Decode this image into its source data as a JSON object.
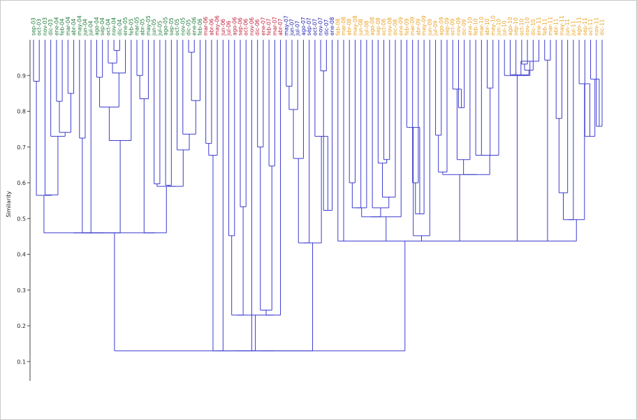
{
  "chart_data": {
    "type": "dendrogram",
    "ylabel": "Similarity",
    "ylim": [
      0.0,
      1.0
    ],
    "yticks": [
      0.1,
      0.2,
      0.3,
      0.4,
      0.5,
      0.6,
      0.7,
      0.8,
      0.9
    ],
    "group_colors": {
      "g1": "#1f7a3a",
      "g2": "#c0203a",
      "g3": "#2020b0",
      "g4": "#e8a020"
    },
    "link_color": "#3b3bd0",
    "leaves": [
      {
        "label": "sep-03",
        "group": "g1"
      },
      {
        "label": "oct-03",
        "group": "g1"
      },
      {
        "label": "nov-03",
        "group": "g1"
      },
      {
        "label": "dic-03",
        "group": "g1"
      },
      {
        "label": "ene-04",
        "group": "g1"
      },
      {
        "label": "feb-04",
        "group": "g1"
      },
      {
        "label": "mar-04",
        "group": "g1"
      },
      {
        "label": "abr-04",
        "group": "g1"
      },
      {
        "label": "may-04",
        "group": "g1"
      },
      {
        "label": "jun-04",
        "group": "g1"
      },
      {
        "label": "jul-04",
        "group": "g1"
      },
      {
        "label": "ago-04",
        "group": "g1"
      },
      {
        "label": "sep-04",
        "group": "g1"
      },
      {
        "label": "oct-04",
        "group": "g1"
      },
      {
        "label": "nov-04",
        "group": "g1"
      },
      {
        "label": "dic-04",
        "group": "g1"
      },
      {
        "label": "ene-05",
        "group": "g1"
      },
      {
        "label": "feb-05",
        "group": "g1"
      },
      {
        "label": "mar-05",
        "group": "g1"
      },
      {
        "label": "abr-05",
        "group": "g1"
      },
      {
        "label": "may-05",
        "group": "g1"
      },
      {
        "label": "jun-05",
        "group": "g1"
      },
      {
        "label": "jul-05",
        "group": "g1"
      },
      {
        "label": "ago-05",
        "group": "g1"
      },
      {
        "label": "sep-05",
        "group": "g1"
      },
      {
        "label": "oct-05",
        "group": "g1"
      },
      {
        "label": "nov-05",
        "group": "g1"
      },
      {
        "label": "dic-05",
        "group": "g1"
      },
      {
        "label": "ene-06",
        "group": "g1"
      },
      {
        "label": "feb-06",
        "group": "g1"
      },
      {
        "label": "mar-06",
        "group": "g2"
      },
      {
        "label": "abr-06",
        "group": "g2"
      },
      {
        "label": "may-06",
        "group": "g2"
      },
      {
        "label": "jun-06",
        "group": "g2"
      },
      {
        "label": "jul-06",
        "group": "g2"
      },
      {
        "label": "ago-06",
        "group": "g2"
      },
      {
        "label": "sep-06",
        "group": "g2"
      },
      {
        "label": "oct-06",
        "group": "g2"
      },
      {
        "label": "nov-06",
        "group": "g2"
      },
      {
        "label": "dic-06",
        "group": "g2"
      },
      {
        "label": "ene-07",
        "group": "g2"
      },
      {
        "label": "feb-07",
        "group": "g2"
      },
      {
        "label": "mar-07",
        "group": "g2"
      },
      {
        "label": "abr-07",
        "group": "g2"
      },
      {
        "label": "may-07",
        "group": "g3"
      },
      {
        "label": "jun-07",
        "group": "g3"
      },
      {
        "label": "jul-07",
        "group": "g3"
      },
      {
        "label": "ago-07",
        "group": "g3"
      },
      {
        "label": "sep-07",
        "group": "g3"
      },
      {
        "label": "oct-07",
        "group": "g3"
      },
      {
        "label": "nov-07",
        "group": "g3"
      },
      {
        "label": "dic-07",
        "group": "g3"
      },
      {
        "label": "ene-08",
        "group": "g3"
      },
      {
        "label": "feb-08",
        "group": "g4"
      },
      {
        "label": "mar-08",
        "group": "g4"
      },
      {
        "label": "abr-08",
        "group": "g4"
      },
      {
        "label": "may-08",
        "group": "g4"
      },
      {
        "label": "jun-08",
        "group": "g4"
      },
      {
        "label": "jul-08",
        "group": "g4"
      },
      {
        "label": "ago-08",
        "group": "g4"
      },
      {
        "label": "sep-08",
        "group": "g4"
      },
      {
        "label": "oct-08",
        "group": "g4"
      },
      {
        "label": "nov-08",
        "group": "g4"
      },
      {
        "label": "dic-08",
        "group": "g4"
      },
      {
        "label": "ene-09",
        "group": "g4"
      },
      {
        "label": "feb-09",
        "group": "g4"
      },
      {
        "label": "mar-09",
        "group": "g4"
      },
      {
        "label": "abr-09",
        "group": "g4"
      },
      {
        "label": "may-09",
        "group": "g4"
      },
      {
        "label": "jun-09",
        "group": "g4"
      },
      {
        "label": "jul-09",
        "group": "g4"
      },
      {
        "label": "ago-09",
        "group": "g4"
      },
      {
        "label": "sep-09",
        "group": "g4"
      },
      {
        "label": "oct-09",
        "group": "g4"
      },
      {
        "label": "nov-09",
        "group": "g4"
      },
      {
        "label": "dic-09",
        "group": "g4"
      },
      {
        "label": "ene-10",
        "group": "g4"
      },
      {
        "label": "feb-10",
        "group": "g4"
      },
      {
        "label": "mar-10",
        "group": "g4"
      },
      {
        "label": "abr-10",
        "group": "g4"
      },
      {
        "label": "may-10",
        "group": "g4"
      },
      {
        "label": "jun-10",
        "group": "g4"
      },
      {
        "label": "jul-10",
        "group": "g4"
      },
      {
        "label": "ago-10",
        "group": "g4"
      },
      {
        "label": "sep-10",
        "group": "g4"
      },
      {
        "label": "oct-10",
        "group": "g4"
      },
      {
        "label": "nov-10",
        "group": "g4"
      },
      {
        "label": "dic-10",
        "group": "g4"
      },
      {
        "label": "ene-11",
        "group": "g4"
      },
      {
        "label": "feb-11",
        "group": "g4"
      },
      {
        "label": "mar-11",
        "group": "g4"
      },
      {
        "label": "abr-11",
        "group": "g4"
      },
      {
        "label": "may-11",
        "group": "g4"
      },
      {
        "label": "jun-11",
        "group": "g4"
      },
      {
        "label": "jul-11",
        "group": "g4"
      },
      {
        "label": "ago-11",
        "group": "g4"
      },
      {
        "label": "sep-11",
        "group": "g4"
      },
      {
        "label": "oct-11",
        "group": "g4"
      },
      {
        "label": "nov-11",
        "group": "g4"
      },
      {
        "label": "dic-11",
        "group": "g4"
      }
    ],
    "merges": [
      {
        "children": [
          0,
          1
        ],
        "height": 0.884
      },
      {
        "children": [
          4,
          5
        ],
        "height": 0.828
      },
      {
        "children": [
          6,
          7
        ],
        "height": 0.85
      },
      {
        "children": [
          101,
          102
        ],
        "height": 0.741
      },
      {
        "children": [
          103,
          3
        ],
        "height": 0.73
      },
      {
        "children": [
          104,
          2
        ],
        "height": 0.566
      },
      {
        "children": [
          100,
          105
        ],
        "height": 0.565
      },
      {
        "children": [
          8,
          9
        ],
        "height": 0.725
      },
      {
        "children": [
          107,
          10
        ],
        "height": 0.46
      },
      {
        "children": [
          14,
          15
        ],
        "height": 0.97
      },
      {
        "children": [
          13,
          109
        ],
        "height": 0.935
      },
      {
        "children": [
          110,
          16
        ],
        "height": 0.907
      },
      {
        "children": [
          11,
          12
        ],
        "height": 0.895
      },
      {
        "children": [
          112,
          111
        ],
        "height": 0.812
      },
      {
        "children": [
          113,
          17
        ],
        "height": 0.718
      },
      {
        "children": [
          108,
          114
        ],
        "height": 0.46
      },
      {
        "children": [
          106,
          115
        ],
        "height": 0.46
      },
      {
        "children": [
          18,
          19
        ],
        "height": 0.9
      },
      {
        "children": [
          117,
          20
        ],
        "height": 0.835
      },
      {
        "children": [
          21,
          22
        ],
        "height": 0.597
      },
      {
        "children": [
          23,
          24
        ],
        "height": 0.593
      },
      {
        "children": [
          27,
          28
        ],
        "height": 0.965
      },
      {
        "children": [
          121,
          29
        ],
        "height": 0.83
      },
      {
        "children": [
          26,
          122
        ],
        "height": 0.736
      },
      {
        "children": [
          25,
          123
        ],
        "height": 0.692
      },
      {
        "children": [
          120,
          124
        ],
        "height": 0.59
      },
      {
        "children": [
          119,
          125
        ],
        "height": 0.59
      },
      {
        "children": [
          118,
          126
        ],
        "height": 0.46
      },
      {
        "children": [
          116,
          127
        ],
        "height": 0.46
      },
      {
        "children": [
          30,
          31
        ],
        "height": 0.71
      },
      {
        "children": [
          129,
          32
        ],
        "height": 0.677
      },
      {
        "children": [
          130,
          33
        ],
        "height": 0.13
      },
      {
        "children": [
          34,
          35
        ],
        "height": 0.452
      },
      {
        "children": [
          36,
          37
        ],
        "height": 0.533
      },
      {
        "children": [
          132,
          133
        ],
        "height": 0.23
      },
      {
        "children": [
          39,
          40
        ],
        "height": 0.7
      },
      {
        "children": [
          41,
          42
        ],
        "height": 0.647
      },
      {
        "children": [
          135,
          136
        ],
        "height": 0.244
      },
      {
        "children": [
          137,
          43
        ],
        "height": 0.23
      },
      {
        "children": [
          134,
          138
        ],
        "height": 0.23
      },
      {
        "children": [
          139,
          38
        ],
        "height": 0.13
      },
      {
        "children": [
          131,
          140
        ],
        "height": 0.13
      },
      {
        "children": [
          44,
          45
        ],
        "height": 0.87
      },
      {
        "children": [
          142,
          46
        ],
        "height": 0.805
      },
      {
        "children": [
          143,
          47
        ],
        "height": 0.668
      },
      {
        "children": [
          144,
          48
        ],
        "height": 0.432
      },
      {
        "children": [
          50,
          51
        ],
        "height": 0.913
      },
      {
        "children": [
          146,
          52
        ],
        "height": 0.523
      },
      {
        "children": [
          49,
          147
        ],
        "height": 0.73
      },
      {
        "children": [
          145,
          148
        ],
        "height": 0.432
      },
      {
        "children": [
          141,
          149
        ],
        "height": 0.13
      },
      {
        "children": [
          61,
          62
        ],
        "height": 0.665
      },
      {
        "children": [
          60,
          151
        ],
        "height": 0.655
      },
      {
        "children": [
          152,
          63
        ],
        "height": 0.56
      },
      {
        "children": [
          59,
          153
        ],
        "height": 0.53
      },
      {
        "children": [
          55,
          56
        ],
        "height": 0.6
      },
      {
        "children": [
          155,
          57
        ],
        "height": 0.53
      },
      {
        "children": [
          156,
          58
        ],
        "height": 0.53
      },
      {
        "children": [
          157,
          154
        ],
        "height": 0.505
      },
      {
        "children": [
          158,
          64
        ],
        "height": 0.505
      },
      {
        "children": [
          66,
          67
        ],
        "height": 0.6
      },
      {
        "children": [
          160,
          68
        ],
        "height": 0.513
      },
      {
        "children": [
          161,
          65
        ],
        "height": 0.755
      },
      {
        "children": [
          162,
          69
        ],
        "height": 0.452
      },
      {
        "children": [
          70,
          71
        ],
        "height": 0.733
      },
      {
        "children": [
          164,
          72
        ],
        "height": 0.63
      },
      {
        "children": [
          74,
          75
        ],
        "height": 0.81
      },
      {
        "children": [
          166,
          73
        ],
        "height": 0.862
      },
      {
        "children": [
          167,
          76
        ],
        "height": 0.665
      },
      {
        "children": [
          79,
          80
        ],
        "height": 0.865
      },
      {
        "children": [
          169,
          78
        ],
        "height": 0.677
      },
      {
        "children": [
          170,
          77
        ],
        "height": 0.677
      },
      {
        "children": [
          171,
          81
        ],
        "height": 0.677
      },
      {
        "children": [
          172,
          168
        ],
        "height": 0.623
      },
      {
        "children": [
          165,
          173
        ],
        "height": 0.623
      },
      {
        "children": [
          83,
          84
        ],
        "height": 0.902
      },
      {
        "children": [
          85,
          86
        ],
        "height": 0.932
      },
      {
        "children": [
          176,
          87
        ],
        "height": 0.915
      },
      {
        "children": [
          175,
          177
        ],
        "height": 0.902
      },
      {
        "children": [
          178,
          88
        ],
        "height": 0.94
      },
      {
        "children": [
          82,
          179
        ],
        "height": 0.9
      },
      {
        "children": [
          174,
          180
        ],
        "height": 0.437
      },
      {
        "children": [
          163,
          181
        ],
        "height": 0.437
      },
      {
        "children": [
          159,
          182
        ],
        "height": 0.437
      },
      {
        "children": [
          54,
          183
        ],
        "height": 0.437
      },
      {
        "children": [
          89,
          90
        ],
        "height": 0.943
      },
      {
        "children": [
          91,
          92
        ],
        "height": 0.78
      },
      {
        "children": [
          186,
          93
        ],
        "height": 0.572
      },
      {
        "children": [
          187,
          94
        ],
        "height": 0.497
      },
      {
        "children": [
          98,
          99
        ],
        "height": 0.758
      },
      {
        "children": [
          97,
          189
        ],
        "height": 0.89
      },
      {
        "children": [
          96,
          190
        ],
        "height": 0.73
      },
      {
        "children": [
          95,
          191
        ],
        "height": 0.877
      },
      {
        "children": [
          188,
          192
        ],
        "height": 0.497
      },
      {
        "children": [
          185,
          193
        ],
        "height": 0.437
      },
      {
        "children": [
          184,
          194
        ],
        "height": 0.437
      },
      {
        "children": [
          53,
          195
        ],
        "height": 0.437
      },
      {
        "children": [
          128,
          196
        ],
        "height": 0.13
      },
      {
        "children": [
          150,
          197
        ],
        "height": 0.13
      }
    ]
  }
}
